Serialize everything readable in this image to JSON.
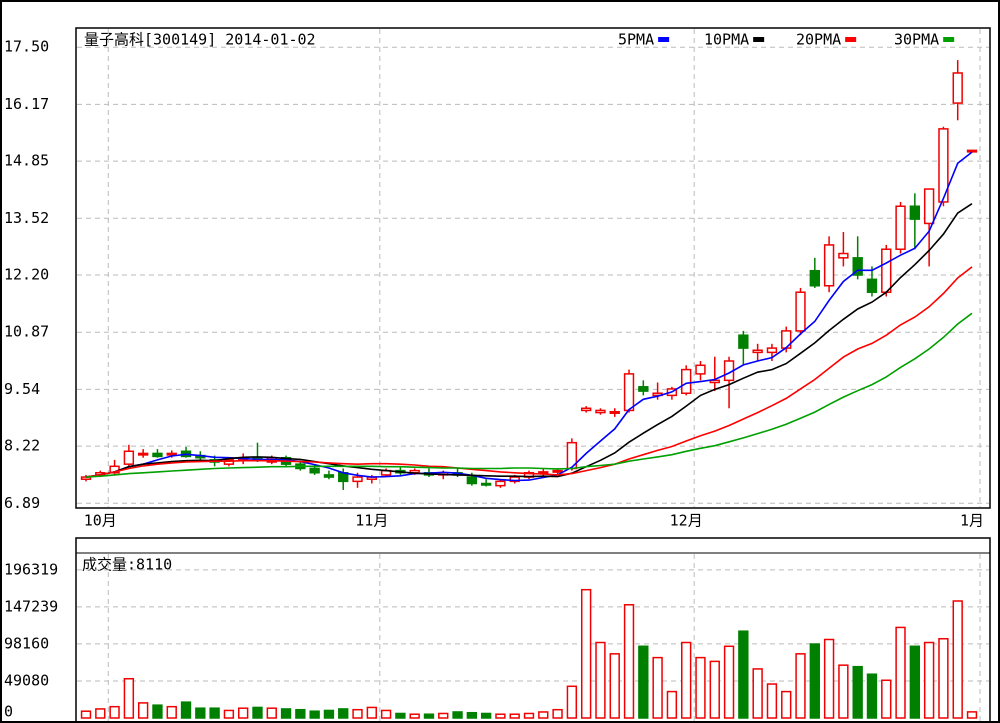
{
  "chart_data": {
    "type": "candlestick",
    "title": "量子高科[300149] 2014-01-02",
    "categories": [
      null,
      "10月",
      null,
      null,
      null,
      null,
      null,
      null,
      null,
      null,
      null,
      null,
      null,
      null,
      null,
      null,
      null,
      null,
      null,
      null,
      "11月",
      null,
      null,
      null,
      null,
      null,
      null,
      null,
      null,
      null,
      null,
      null,
      null,
      null,
      null,
      null,
      null,
      null,
      null,
      null,
      null,
      null,
      "12月",
      null,
      null,
      null,
      null,
      null,
      null,
      null,
      null,
      null,
      null,
      null,
      null,
      null,
      null,
      null,
      null,
      null,
      null,
      null,
      "1月"
    ],
    "open": [
      7.45,
      7.55,
      7.6,
      7.8,
      8.05,
      8.05,
      8.02,
      8.1,
      8.0,
      7.9,
      7.8,
      7.9,
      7.95,
      7.85,
      7.95,
      7.8,
      7.7,
      7.55,
      7.6,
      7.4,
      7.45,
      7.55,
      7.65,
      7.6,
      7.6,
      7.55,
      7.6,
      7.5,
      7.35,
      7.3,
      7.4,
      7.5,
      7.6,
      7.62,
      7.7,
      9.05,
      9.0,
      9.0,
      9.05,
      9.6,
      9.4,
      9.4,
      9.45,
      9.9,
      9.7,
      9.75,
      10.8,
      10.4,
      10.4,
      10.5,
      10.9,
      12.3,
      11.95,
      12.6,
      12.6,
      12.1,
      11.8,
      12.8,
      13.8,
      13.4,
      13.9,
      16.2,
      15.1
    ],
    "high": [
      7.55,
      7.65,
      7.9,
      8.25,
      8.15,
      8.15,
      8.12,
      8.2,
      8.1,
      8.0,
      7.95,
      8.05,
      8.3,
      8.0,
      8.0,
      7.85,
      7.8,
      7.65,
      7.7,
      7.6,
      7.55,
      7.7,
      7.75,
      7.7,
      7.7,
      7.65,
      7.7,
      7.6,
      7.45,
      7.45,
      7.55,
      7.65,
      7.7,
      7.7,
      8.4,
      9.15,
      9.1,
      9.1,
      10.0,
      9.75,
      9.7,
      9.6,
      10.1,
      10.2,
      10.3,
      10.3,
      10.9,
      10.6,
      10.6,
      11.0,
      11.9,
      12.6,
      13.1,
      13.2,
      13.1,
      12.4,
      12.9,
      13.9,
      14.1,
      14.2,
      15.65,
      17.2,
      15.1
    ],
    "low": [
      7.4,
      7.5,
      7.55,
      7.75,
      7.95,
      7.95,
      7.95,
      7.95,
      7.85,
      7.75,
      7.75,
      7.8,
      7.85,
      7.8,
      7.75,
      7.65,
      7.55,
      7.45,
      7.2,
      7.25,
      7.35,
      7.5,
      7.55,
      7.55,
      7.5,
      7.45,
      7.5,
      7.3,
      7.28,
      7.25,
      7.35,
      7.45,
      7.5,
      7.55,
      7.65,
      9.0,
      8.95,
      8.9,
      9.0,
      9.4,
      9.3,
      9.3,
      9.4,
      9.75,
      9.5,
      9.1,
      10.1,
      10.2,
      10.2,
      10.4,
      10.8,
      11.9,
      11.8,
      12.4,
      12.1,
      11.7,
      11.7,
      12.7,
      12.8,
      12.4,
      13.8,
      15.8,
      15.1
    ],
    "close": [
      7.5,
      7.6,
      7.75,
      8.1,
      8.05,
      7.98,
      8.05,
      7.98,
      7.95,
      7.85,
      7.9,
      7.95,
      7.9,
      7.95,
      7.8,
      7.7,
      7.6,
      7.5,
      7.4,
      7.5,
      7.5,
      7.65,
      7.6,
      7.65,
      7.55,
      7.6,
      7.55,
      7.35,
      7.32,
      7.4,
      7.5,
      7.6,
      7.62,
      7.65,
      8.3,
      9.1,
      9.05,
      9.02,
      9.9,
      9.5,
      9.45,
      9.55,
      10.0,
      10.1,
      9.75,
      10.2,
      10.5,
      10.45,
      10.5,
      10.9,
      11.8,
      11.95,
      12.9,
      12.7,
      12.2,
      11.8,
      12.8,
      13.8,
      13.5,
      14.2,
      15.6,
      16.9,
      15.1
    ],
    "up_color": "#f00000",
    "down_color": "#008000",
    "series": [
      {
        "name": "5PMA",
        "color": "#0000ff",
        "values": [
          7.5,
          7.55,
          7.62,
          7.74,
          7.8,
          7.9,
          7.99,
          8.03,
          8.0,
          7.96,
          7.95,
          7.93,
          7.91,
          7.91,
          7.9,
          7.86,
          7.79,
          7.71,
          7.6,
          7.54,
          7.5,
          7.51,
          7.53,
          7.58,
          7.59,
          7.61,
          7.59,
          7.54,
          7.47,
          7.44,
          7.42,
          7.43,
          7.49,
          7.55,
          7.73,
          8.05,
          8.34,
          8.62,
          9.07,
          9.31,
          9.38,
          9.48,
          9.68,
          9.72,
          9.77,
          9.92,
          10.11,
          10.2,
          10.28,
          10.51,
          10.83,
          11.12,
          11.61,
          12.05,
          12.31,
          12.31,
          12.48,
          12.66,
          12.82,
          13.22,
          13.98,
          14.8,
          15.06
        ]
      },
      {
        "name": "10PMA",
        "color": "#000000",
        "values": [
          7.5,
          7.55,
          7.62,
          7.74,
          7.8,
          7.83,
          7.86,
          7.88,
          7.89,
          7.88,
          7.93,
          7.96,
          7.97,
          7.96,
          7.93,
          7.91,
          7.86,
          7.81,
          7.76,
          7.72,
          7.68,
          7.65,
          7.62,
          7.59,
          7.57,
          7.56,
          7.55,
          7.54,
          7.53,
          7.52,
          7.52,
          7.51,
          7.52,
          7.51,
          7.59,
          7.74,
          7.89,
          8.06,
          8.31,
          8.52,
          8.72,
          8.91,
          9.15,
          9.4,
          9.54,
          9.65,
          9.8,
          9.94,
          10.0,
          10.14,
          10.38,
          10.62,
          10.91,
          11.17,
          11.41,
          11.57,
          11.8,
          12.14,
          12.44,
          12.77,
          13.15,
          13.64,
          13.86
        ]
      },
      {
        "name": "20PMA",
        "color": "#ff0000",
        "values": [
          7.5,
          7.55,
          7.62,
          7.7,
          7.76,
          7.8,
          7.83,
          7.85,
          7.86,
          7.87,
          7.87,
          7.88,
          7.88,
          7.88,
          7.87,
          7.86,
          7.85,
          7.83,
          7.81,
          7.8,
          7.81,
          7.81,
          7.8,
          7.78,
          7.75,
          7.74,
          7.71,
          7.68,
          7.65,
          7.62,
          7.6,
          7.58,
          7.57,
          7.55,
          7.58,
          7.65,
          7.72,
          7.8,
          7.92,
          8.02,
          8.12,
          8.21,
          8.34,
          8.46,
          8.57,
          8.7,
          8.85,
          9.0,
          9.16,
          9.33,
          9.55,
          9.77,
          10.03,
          10.29,
          10.48,
          10.61,
          10.8,
          11.04,
          11.22,
          11.46,
          11.77,
          12.13,
          12.39
        ]
      },
      {
        "name": "30PMA",
        "color": "#00a000",
        "values": [
          7.5,
          7.52,
          7.55,
          7.58,
          7.6,
          7.62,
          7.64,
          7.66,
          7.68,
          7.7,
          7.71,
          7.72,
          7.73,
          7.74,
          7.74,
          7.75,
          7.75,
          7.75,
          7.75,
          7.75,
          7.75,
          7.74,
          7.74,
          7.73,
          7.72,
          7.71,
          7.71,
          7.7,
          7.7,
          7.7,
          7.71,
          7.71,
          7.7,
          7.69,
          7.7,
          7.74,
          7.77,
          7.8,
          7.87,
          7.92,
          7.97,
          8.02,
          8.1,
          8.17,
          8.23,
          8.32,
          8.41,
          8.51,
          8.61,
          8.73,
          8.87,
          9.01,
          9.19,
          9.36,
          9.51,
          9.65,
          9.83,
          10.05,
          10.25,
          10.48,
          10.75,
          11.06,
          11.31
        ]
      }
    ],
    "ylim": [
      6.85,
      17.9
    ],
    "yticks": [
      {
        "value": 17.5,
        "label": "17.50"
      },
      16.17,
      14.85,
      13.52,
      {
        "value": 12.2,
        "label": "12.20"
      },
      10.87,
      9.54,
      8.22,
      6.89
    ],
    "grid": true,
    "volume": {
      "label": "成交量:8110",
      "values": [
        9000,
        12000,
        15000,
        52000,
        20000,
        17000,
        15000,
        21000,
        13000,
        13000,
        10000,
        13000,
        14000,
        13000,
        12000,
        11000,
        9000,
        10000,
        12000,
        11000,
        14000,
        10000,
        6000,
        5000,
        5000,
        6000,
        8000,
        7000,
        6000,
        5000,
        5000,
        6000,
        8000,
        11000,
        42000,
        170000,
        100000,
        85000,
        150000,
        95000,
        80000,
        35000,
        100000,
        80000,
        75000,
        95000,
        115000,
        65000,
        45000,
        35000,
        85000,
        98000,
        104000,
        70000,
        68000,
        58000,
        50000,
        120000,
        95000,
        100000,
        105000,
        155000,
        8110
      ],
      "ylim": [
        0,
        218600
      ],
      "yticks": [
        196319,
        147239,
        98160,
        49080,
        0
      ]
    }
  }
}
